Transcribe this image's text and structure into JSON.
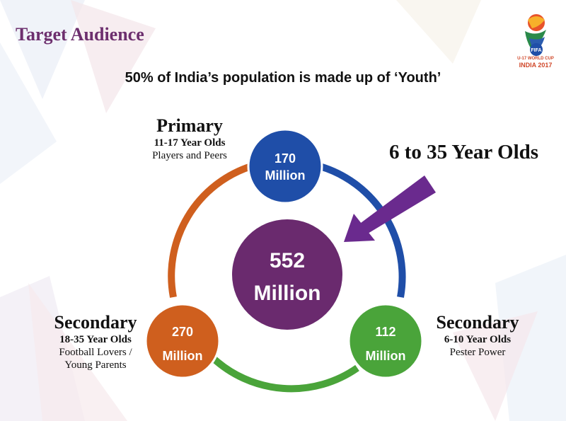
{
  "slide": {
    "title": "Target Audience",
    "subtitle": "50% of India’s population is made up of ‘Youth’"
  },
  "logo": {
    "tagline": "U-17 WORLD CUP",
    "edition": "INDIA 2017",
    "badge": "FIFA"
  },
  "center": {
    "value": "552",
    "unit": "Million",
    "color": "#6a2a6e"
  },
  "segments": [
    {
      "id": "primary",
      "value": "170",
      "unit": "Million",
      "color": "#1f4ea8",
      "heading": "Primary",
      "ages": "11-17 Year Olds",
      "description": "Players and Peers"
    },
    {
      "id": "secondary-adult",
      "value": "270",
      "unit": "Million",
      "color": "#cf5f1e",
      "heading": "Secondary",
      "ages": "18-35 Year Olds",
      "description": "Football Lovers /",
      "description2": "Young Parents"
    },
    {
      "id": "secondary-kids",
      "value": "112",
      "unit": "Million",
      "color": "#4aa43a",
      "heading": "Secondary",
      "ages": "6-10 Year Olds",
      "description": "Pester Power"
    }
  ],
  "callout": {
    "text": "6 to 35 Year Olds",
    "arrow_color": "#6a2a8e"
  },
  "colors": {
    "title": "#6d2f6e",
    "ring_blue": "#1f4ea8",
    "ring_orange": "#cf5f1e",
    "ring_green": "#4aa43a"
  }
}
